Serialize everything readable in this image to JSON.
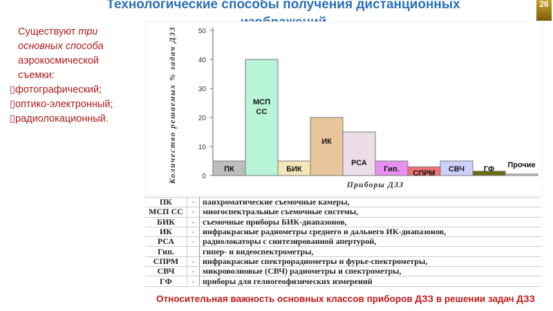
{
  "title": "Технологические способы получения дистанционных изображений",
  "slide_number": "26",
  "intro": {
    "line1_a": "Существуют ",
    "line1_b": "три",
    "line2": "основных способа",
    "line3": "аэрокосмической",
    "line4": "съемки:",
    "items": [
      "фотографический;",
      "оптико-электронный;",
      "радиолокационный."
    ]
  },
  "chart_data": {
    "type": "bar",
    "categories": [
      "ПК",
      "МСП СС",
      "БИК",
      "ИК",
      "РСА",
      "Гип.",
      "СПРМ",
      "СВЧ",
      "ГФ",
      "Прочие"
    ],
    "values": [
      5,
      40,
      5,
      20,
      15,
      5,
      3,
      5,
      1.5,
      0.5
    ],
    "colors": [
      "#bdbdbd",
      "#b8f5d8",
      "#f3e6b8",
      "#e8c59a",
      "#ecdce8",
      "#e890f0",
      "#ef7070",
      "#ccd0ff",
      "#6b6b10",
      "#d8d8d8"
    ],
    "ylabel": "Количество решаемых % задач ДЗЗ",
    "xlabel": "Приборы ДЗЗ",
    "ylim": [
      0,
      50
    ],
    "yticks": [
      0,
      10,
      20,
      30,
      40,
      50
    ],
    "grid": false
  },
  "legend_table": [
    {
      "abbr": "ПК",
      "dash": "-",
      "text": "панхроматические съемочные камеры,"
    },
    {
      "abbr": "МСП СС",
      "dash": "-",
      "text": "многоспектральные съемочные системы,"
    },
    {
      "abbr": "БИК",
      "dash": "-",
      "text": "съемочные приборы БИК-диапазонов,"
    },
    {
      "abbr": "ИК",
      "dash": "-",
      "text": "инфракрасные радиометры среднего и дальнего ИК-диапазонов,"
    },
    {
      "abbr": "РСА",
      "dash": "-",
      "text": "радиолокаторы с синтезированной апертурой,"
    },
    {
      "abbr": "Гип.",
      "dash": "",
      "text": "гипер- и видеоспектрометры,"
    },
    {
      "abbr": "СПРМ",
      "dash": "-",
      "text": "инфракрасные спектрорадиометры и фурье-спектрометры,"
    },
    {
      "abbr": "СВЧ",
      "dash": "-",
      "text": "микроволновые (СВЧ) радиометры и спектрометры,"
    },
    {
      "abbr": "ГФ",
      "dash": "-",
      "text": "приборы для гелиогеофизических измерений"
    }
  ],
  "caption": "Относительная важность основных классов приборов ДЗЗ в решении задач ДЗЗ"
}
